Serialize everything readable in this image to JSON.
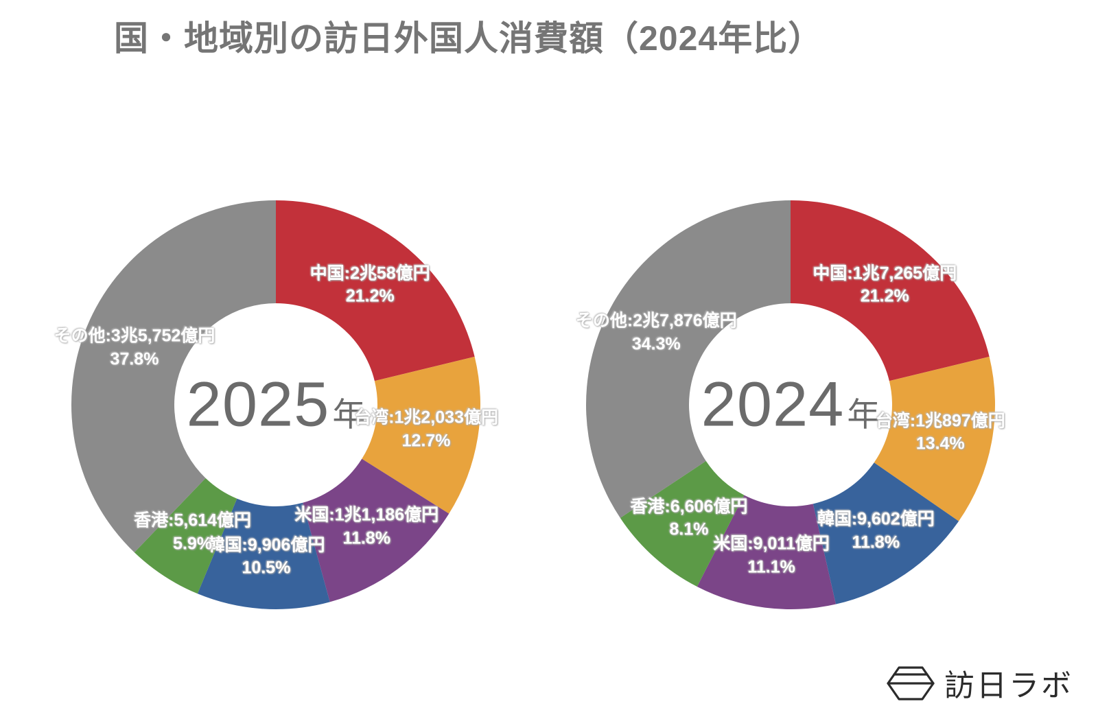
{
  "title": "国・地域別の訪日外国人消費額（2024年比）",
  "logo": {
    "text": "訪日ラボ"
  },
  "chart_data": [
    {
      "type": "pie",
      "subtype": "donut",
      "title": "2025年",
      "center_label": {
        "year": "2025",
        "suffix": "年"
      },
      "unit": "億円",
      "start_angle": "top",
      "direction": "clockwise",
      "hole_ratio": 0.5,
      "slices": [
        {
          "label": "中国",
          "value_text": "2兆58億円",
          "value_oku_yen": 20058,
          "percent": 21.2,
          "color": "#c2313a"
        },
        {
          "label": "台湾",
          "value_text": "1兆2,033億円",
          "value_oku_yen": 12033,
          "percent": 12.7,
          "color": "#e8a33d"
        },
        {
          "label": "米国",
          "value_text": "1兆1,186億円",
          "value_oku_yen": 11186,
          "percent": 11.8,
          "color": "#7b4588"
        },
        {
          "label": "韓国",
          "value_text": "9,906億円",
          "value_oku_yen": 9906,
          "percent": 10.5,
          "color": "#38639c"
        },
        {
          "label": "香港",
          "value_text": "5,614億円",
          "value_oku_yen": 5614,
          "percent": 5.9,
          "color": "#5c9a47"
        },
        {
          "label": "その他",
          "value_text": "3兆5,752億円",
          "value_oku_yen": 35752,
          "percent": 37.8,
          "color": "#8b8b8b"
        }
      ]
    },
    {
      "type": "pie",
      "subtype": "donut",
      "title": "2024年",
      "center_label": {
        "year": "2024",
        "suffix": "年"
      },
      "unit": "億円",
      "start_angle": "top",
      "direction": "clockwise",
      "hole_ratio": 0.5,
      "slices": [
        {
          "label": "中国",
          "value_text": "1兆7,265億円",
          "value_oku_yen": 17265,
          "percent": 21.2,
          "color": "#c2313a"
        },
        {
          "label": "台湾",
          "value_text": "1兆897億円",
          "value_oku_yen": 10897,
          "percent": 13.4,
          "color": "#e8a33d"
        },
        {
          "label": "韓国",
          "value_text": "9,602億円",
          "value_oku_yen": 9602,
          "percent": 11.8,
          "color": "#38639c"
        },
        {
          "label": "米国",
          "value_text": "9,011億円",
          "value_oku_yen": 9011,
          "percent": 11.1,
          "color": "#7b4588"
        },
        {
          "label": "香港",
          "value_text": "6,606億円",
          "value_oku_yen": 6606,
          "percent": 8.1,
          "color": "#5c9a47"
        },
        {
          "label": "その他",
          "value_text": "2兆7,876億円",
          "value_oku_yen": 27876,
          "percent": 34.3,
          "color": "#8b8b8b"
        }
      ]
    }
  ]
}
